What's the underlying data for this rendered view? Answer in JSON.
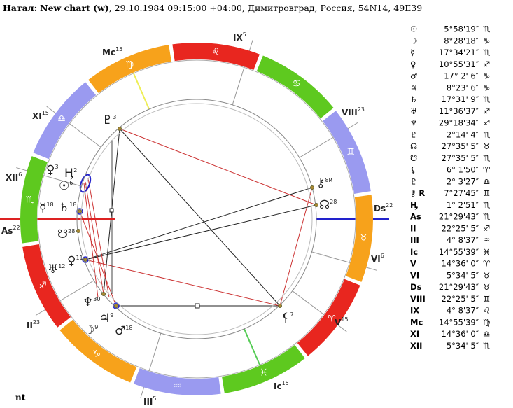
{
  "header": {
    "label": "Натал:",
    "name": "New chart (w)",
    "details": ", 29.10.1984 09:15:00 +04:00, Димитровград, Россия, 54N14, 49E39"
  },
  "table": {
    "rows": [
      [
        "☉",
        "5°58'19″",
        "♏"
      ],
      [
        "☽",
        "8°28'18″",
        "♑"
      ],
      [
        "☿",
        "17°34'21″",
        "♏"
      ],
      [
        "♀",
        "10°55'31″",
        "♐"
      ],
      [
        "♂",
        "17° 2' 6″",
        "♑"
      ],
      [
        "♃",
        "8°23' 6″",
        "♑"
      ],
      [
        "♄",
        "17°31' 9″",
        "♏"
      ],
      [
        "♅",
        "11°36'37″",
        "♐"
      ],
      [
        "♆",
        "29°18'34″",
        "♐"
      ],
      [
        "♇",
        "2°14' 4″",
        "♏"
      ],
      [
        "☊",
        "27°35' 5″",
        "♉"
      ],
      [
        "☋",
        "27°35' 5″",
        "♏"
      ],
      [
        "⚸",
        "6° 1'50″",
        "♈"
      ],
      [
        "♇",
        "2° 3'27″",
        "♎"
      ],
      [
        "⚷ R",
        "7°27'45″",
        "♊"
      ],
      [
        "Ӊ",
        "1° 2'51″",
        "♏"
      ],
      [
        "As",
        "21°29'43″",
        "♏"
      ],
      [
        "II",
        "22°25' 5″",
        "♐"
      ],
      [
        "III",
        "4° 8'37″",
        "♒"
      ],
      [
        "Ic",
        "14°55'39″",
        "♓"
      ],
      [
        "V",
        "14°36' 0″",
        "♈"
      ],
      [
        "VI",
        "5°34' 5″",
        "♉"
      ],
      [
        "Ds",
        "21°29'43″",
        "♉"
      ],
      [
        "VIII",
        "22°25' 5″",
        "♊"
      ],
      [
        "IX",
        "4° 8'37″",
        "♌"
      ],
      [
        "Mc",
        "14°55'39″",
        "♍"
      ],
      [
        "XI",
        "14°36' 0″",
        "♎"
      ],
      [
        "XII",
        "5°34' 5″",
        "♏"
      ]
    ]
  },
  "wheel": {
    "signs": [
      "♈",
      "♉",
      "♊",
      "♋",
      "♌",
      "♍",
      "♎",
      "♏",
      "♐",
      "♑",
      "♒",
      "♓"
    ],
    "houses": [
      {
        "label": "As",
        "deg": "22"
      },
      {
        "label": "II",
        "deg": "23"
      },
      {
        "label": "III",
        "deg": "5"
      },
      {
        "label": "Ic",
        "deg": "15"
      },
      {
        "label": "V",
        "deg": "15"
      },
      {
        "label": "VI",
        "deg": "6"
      },
      {
        "label": "Ds",
        "deg": "22"
      },
      {
        "label": "VIII",
        "deg": "23"
      },
      {
        "label": "IX",
        "deg": "5"
      },
      {
        "label": "Mc",
        "deg": "15"
      },
      {
        "label": "XI",
        "deg": "15"
      },
      {
        "label": "XII",
        "deg": "6"
      }
    ],
    "planets": [
      {
        "glyph": "♇",
        "deg": "3"
      },
      {
        "glyph": "♀",
        "deg": "3"
      },
      {
        "glyph": "Ӊ",
        "deg": "2"
      },
      {
        "glyph": "☉",
        "deg": "6"
      },
      {
        "glyph": "☿",
        "deg": "18"
      },
      {
        "glyph": "♄",
        "deg": "18"
      },
      {
        "glyph": "☋",
        "deg": "28"
      },
      {
        "glyph": "♀",
        "deg": "11"
      },
      {
        "glyph": "♅",
        "deg": "12"
      },
      {
        "glyph": "♆",
        "deg": "30"
      },
      {
        "glyph": "♃",
        "deg": "9"
      },
      {
        "glyph": "☽",
        "deg": "9"
      },
      {
        "glyph": "♂",
        "deg": "18"
      },
      {
        "glyph": "⚷",
        "deg": "8R"
      },
      {
        "glyph": "☊",
        "deg": "28"
      },
      {
        "glyph": "⚸",
        "deg": "7"
      }
    ]
  },
  "footer": "nt"
}
